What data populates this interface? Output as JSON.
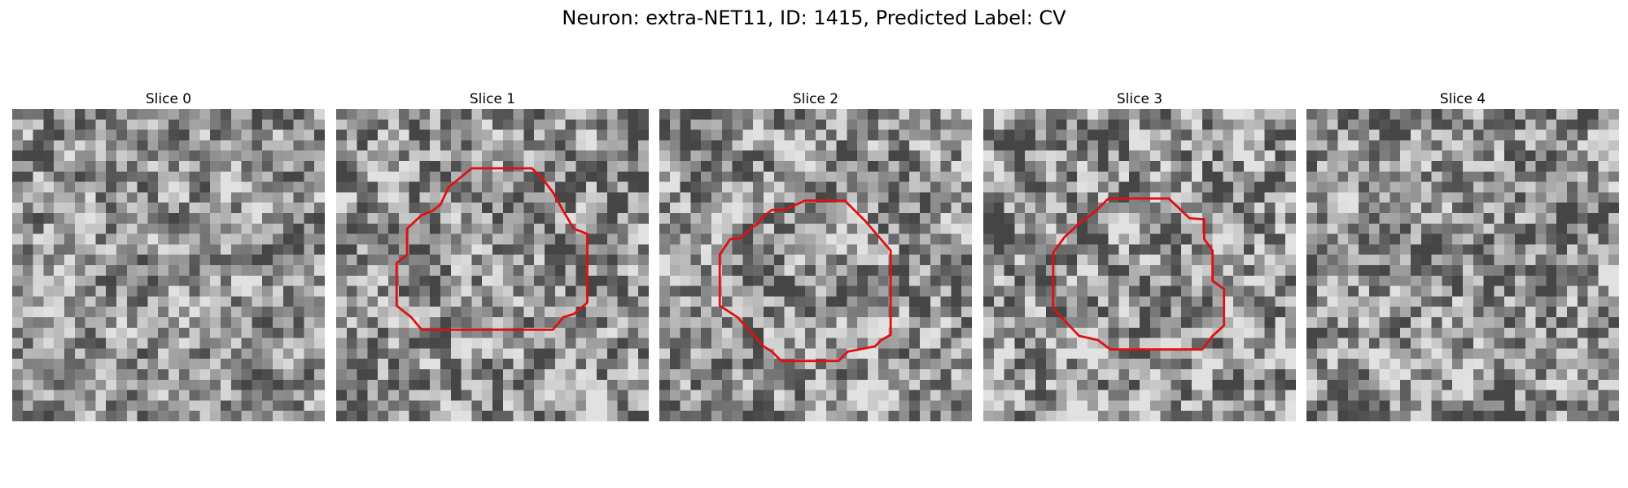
{
  "figure": {
    "title": "Neuron: extra-NET11, ID: 1415, Predicted Label: CV",
    "contour_color": "#e01010",
    "grid_size": 30
  },
  "slices": [
    {
      "label": "Slice 0",
      "seed": 11,
      "has_contour": false,
      "contrast": 0.9,
      "contour": []
    },
    {
      "label": "Slice 1",
      "seed": 23,
      "has_contour": true,
      "contrast": 1.0,
      "contour": [
        [
          13,
          5.7
        ],
        [
          18.8,
          5.7
        ],
        [
          19.8,
          6.7
        ],
        [
          20.8,
          8
        ],
        [
          21.8,
          9.8
        ],
        [
          22.8,
          11.5
        ],
        [
          24.1,
          12
        ],
        [
          24.1,
          18.6
        ],
        [
          22.8,
          19.7
        ],
        [
          21.8,
          20
        ],
        [
          20.8,
          21.2
        ],
        [
          8.2,
          21.2
        ],
        [
          7.2,
          20
        ],
        [
          5.8,
          18.9
        ],
        [
          5.8,
          14.8
        ],
        [
          6.8,
          14
        ],
        [
          6.8,
          11.5
        ],
        [
          8.2,
          10.2
        ],
        [
          9.2,
          9.8
        ],
        [
          10,
          9.2
        ],
        [
          10.8,
          7.5
        ],
        [
          11.8,
          6.7
        ]
      ]
    },
    {
      "label": "Slice 2",
      "seed": 37,
      "has_contour": true,
      "contrast": 1.0,
      "contour": [
        [
          10.8,
          9.7
        ],
        [
          12,
          9.7
        ],
        [
          14,
          8.8
        ],
        [
          17.8,
          8.8
        ],
        [
          19.8,
          10.8
        ],
        [
          22.2,
          13.6
        ],
        [
          22.2,
          21.7
        ],
        [
          21.3,
          22.2
        ],
        [
          20.7,
          22.8
        ],
        [
          18.1,
          23.3
        ],
        [
          17.2,
          24.2
        ],
        [
          11.7,
          24.2
        ],
        [
          10.8,
          23.3
        ],
        [
          10,
          22.8
        ],
        [
          7.5,
          20
        ],
        [
          5.8,
          18.9
        ],
        [
          5.8,
          14
        ],
        [
          6.8,
          12.5
        ],
        [
          7.8,
          12.4
        ],
        [
          9,
          11.3
        ],
        [
          9.5,
          11
        ],
        [
          9.8,
          10.5
        ],
        [
          10,
          10.3
        ]
      ]
    },
    {
      "label": "Slice 3",
      "seed": 51,
      "has_contour": true,
      "contrast": 1.1,
      "contour": [
        [
          12,
          8.6
        ],
        [
          17.8,
          8.6
        ],
        [
          19.8,
          10.5
        ],
        [
          21.2,
          10.6
        ],
        [
          21.2,
          12.5
        ],
        [
          22,
          13.6
        ],
        [
          22,
          16.5
        ],
        [
          23.1,
          17.3
        ],
        [
          23.1,
          20.8
        ],
        [
          22,
          21.8
        ],
        [
          21,
          23.1
        ],
        [
          12.2,
          23.1
        ],
        [
          11,
          22.2
        ],
        [
          9.2,
          21.8
        ],
        [
          7.3,
          19.8
        ],
        [
          6.7,
          19.1
        ],
        [
          6.7,
          13.8
        ],
        [
          7.8,
          12.3
        ],
        [
          9.2,
          11
        ],
        [
          10.8,
          9.8
        ]
      ]
    },
    {
      "label": "Slice 4",
      "seed": 67,
      "has_contour": false,
      "contrast": 0.95,
      "contour": []
    }
  ]
}
